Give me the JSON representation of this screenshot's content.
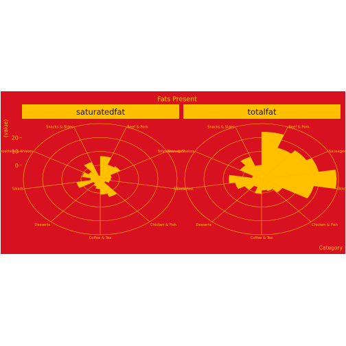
{
  "chart_data": {
    "type": "polar-bar",
    "title": "Fats Present",
    "xlabel": "Category",
    "ylabel": "(value)",
    "categories": [
      "Beef & Pork",
      "Sausages",
      "Breakfast",
      "Chicken & Fish",
      "Coffee & Tea",
      "Desserts",
      "Salads",
      "Smoothies & Shakes",
      "Snacks & Sides"
    ],
    "r_ticks": [
      0,
      10,
      20
    ],
    "r_range": [
      -10,
      30
    ],
    "grid": true,
    "colors": {
      "background": "#d7111f",
      "fill": "#ffc000",
      "strip": "#ffc000",
      "line": "#ffc000",
      "text": "#ffc000",
      "strip_text": "#111111"
    },
    "panels": [
      {
        "name": "saturatedfat",
        "values": [
          6.5,
          1.0,
          2.0,
          -4.0,
          -4.5,
          -5.0,
          -7.0,
          3.5,
          1.0,
          -3.0,
          -4.5,
          -6.0,
          2.5,
          -5.0,
          -0.5,
          -3.0,
          3.0,
          -7.5
        ]
      },
      {
        "name": "totalfat",
        "values": [
          24.0,
          14.0,
          17.0,
          20.0,
          29.0,
          17.5,
          2.5,
          -1.0,
          -2.0,
          0.5,
          -4.0,
          0.0,
          4.0,
          7.0,
          -5.0,
          3.0,
          7.0,
          0.0
        ]
      }
    ]
  }
}
